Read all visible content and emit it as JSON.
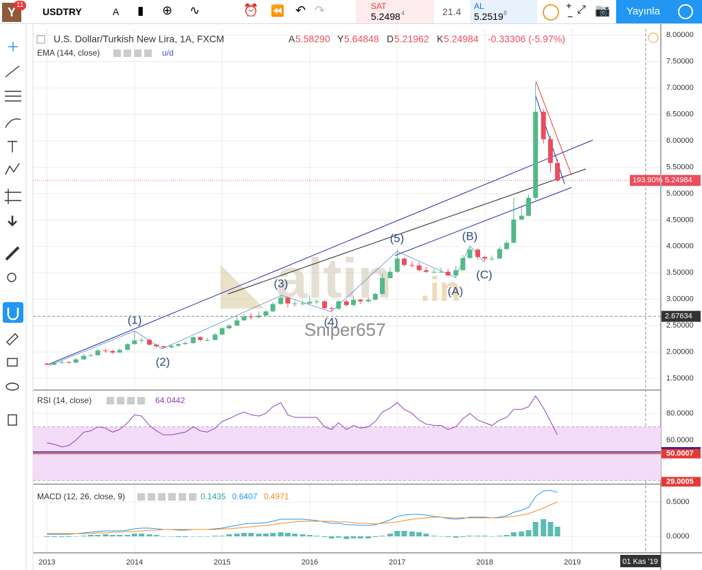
{
  "toolbar": {
    "badge": "11",
    "symbol": "USDTRY",
    "interval": "A",
    "sell_label": "SAT",
    "sell_price": "5.2498",
    "sell_digit": "4",
    "spread": "21.4",
    "buy_label": "AL",
    "buy_price": "5.2519",
    "buy_digit": "8",
    "publish": "Yayınla"
  },
  "chart_data": [
    {
      "type": "candlestick",
      "title": "U.S. Dollar/Turkish New Lira, 1A, FXCM",
      "ohlc_legend": [
        "A",
        "5.58290",
        "Y",
        "5.64848",
        "D",
        "5.21962",
        "K",
        "5.24984",
        "-0.33306 (-5.97%)"
      ],
      "indicator": "EMA (144, close)",
      "indicator_note": "u/d",
      "annotations": [
        "(1)",
        "(2)",
        "(3)",
        "(4)",
        "(5)",
        "(A)",
        "(B)",
        "(C)"
      ],
      "watermark": [
        "altin",
        ".in"
      ],
      "author": "Sniper657",
      "x": [
        2013,
        2013.08,
        2013.17,
        2013.25,
        2013.33,
        2013.42,
        2013.5,
        2013.58,
        2013.67,
        2013.75,
        2013.83,
        2013.92,
        2014,
        2014.08,
        2014.17,
        2014.25,
        2014.33,
        2014.42,
        2014.5,
        2014.58,
        2014.67,
        2014.75,
        2014.83,
        2014.92,
        2015,
        2015.08,
        2015.17,
        2015.25,
        2015.33,
        2015.42,
        2015.5,
        2015.58,
        2015.67,
        2015.75,
        2015.83,
        2015.92,
        2016,
        2016.08,
        2016.17,
        2016.25,
        2016.33,
        2016.42,
        2016.5,
        2016.58,
        2016.67,
        2016.75,
        2016.83,
        2016.92,
        2017,
        2017.08,
        2017.17,
        2017.25,
        2017.33,
        2017.42,
        2017.5,
        2017.58,
        2017.67,
        2017.75,
        2017.83,
        2017.92,
        2018,
        2018.08,
        2018.17,
        2018.25,
        2018.33,
        2018.42,
        2018.5,
        2018.58,
        2018.67,
        2018.75,
        2018.83
      ],
      "open": [
        1.78,
        1.76,
        1.8,
        1.81,
        1.8,
        1.86,
        1.93,
        1.94,
        2.03,
        2.02,
        1.99,
        2.04,
        2.15,
        2.22,
        2.23,
        2.14,
        2.11,
        2.09,
        2.12,
        2.15,
        2.17,
        2.28,
        2.23,
        2.23,
        2.33,
        2.45,
        2.5,
        2.6,
        2.67,
        2.66,
        2.69,
        2.77,
        2.91,
        3.03,
        2.92,
        2.92,
        2.92,
        2.95,
        2.96,
        2.83,
        2.82,
        2.96,
        2.89,
        2.99,
        2.96,
        2.99,
        3.1,
        3.4,
        3.52,
        3.77,
        3.65,
        3.64,
        3.55,
        3.52,
        3.52,
        3.52,
        3.45,
        3.55,
        3.78,
        3.94,
        3.8,
        3.77,
        3.77,
        3.95,
        4.07,
        4.51,
        4.58,
        4.92,
        6.55,
        6.03,
        5.58
      ],
      "high": [
        1.8,
        1.82,
        1.84,
        1.83,
        1.89,
        1.97,
        1.97,
        2.07,
        2.07,
        2.04,
        2.07,
        2.17,
        2.39,
        2.27,
        2.26,
        2.16,
        2.12,
        2.15,
        2.17,
        2.2,
        2.3,
        2.3,
        2.27,
        2.36,
        2.47,
        2.53,
        2.67,
        2.72,
        2.74,
        2.76,
        2.8,
        2.94,
        3.08,
        3.05,
        2.97,
        2.98,
        3.07,
        2.99,
        2.98,
        2.86,
        2.99,
        2.99,
        3.05,
        3.01,
        3.03,
        3.12,
        3.49,
        3.6,
        3.94,
        3.79,
        3.72,
        3.7,
        3.61,
        3.58,
        3.6,
        3.58,
        3.63,
        3.84,
        3.98,
        3.96,
        3.82,
        3.83,
        3.99,
        4.11,
        4.92,
        4.79,
        4.98,
        7.1,
        6.6,
        6.1,
        5.65
      ],
      "low": [
        1.75,
        1.75,
        1.78,
        1.78,
        1.79,
        1.85,
        1.91,
        1.93,
        1.98,
        1.96,
        1.98,
        2.03,
        2.14,
        2.17,
        2.12,
        2.08,
        2.07,
        2.07,
        2.1,
        2.14,
        2.16,
        2.2,
        2.2,
        2.22,
        2.32,
        2.43,
        2.49,
        2.59,
        2.61,
        2.63,
        2.68,
        2.76,
        2.9,
        2.84,
        2.86,
        2.88,
        2.9,
        2.91,
        2.82,
        2.77,
        2.8,
        2.86,
        2.86,
        2.91,
        2.94,
        2.98,
        3.08,
        3.39,
        3.5,
        3.62,
        3.6,
        3.53,
        3.5,
        3.49,
        3.5,
        3.44,
        3.4,
        3.54,
        3.77,
        3.75,
        3.71,
        3.73,
        3.76,
        3.94,
        4.06,
        4.5,
        4.57,
        4.88,
        5.95,
        5.4,
        5.22
      ],
      "close": [
        1.76,
        1.8,
        1.81,
        1.8,
        1.86,
        1.93,
        1.94,
        2.03,
        2.02,
        1.99,
        2.04,
        2.15,
        2.22,
        2.23,
        2.14,
        2.11,
        2.09,
        2.12,
        2.15,
        2.17,
        2.28,
        2.23,
        2.23,
        2.33,
        2.45,
        2.5,
        2.6,
        2.67,
        2.66,
        2.69,
        2.77,
        2.91,
        3.03,
        2.92,
        2.92,
        2.92,
        2.95,
        2.96,
        2.83,
        2.82,
        2.96,
        2.89,
        2.99,
        2.96,
        2.99,
        3.1,
        3.4,
        3.52,
        3.77,
        3.65,
        3.64,
        3.55,
        3.52,
        3.52,
        3.52,
        3.45,
        3.55,
        3.78,
        3.94,
        3.8,
        3.77,
        3.77,
        3.95,
        4.07,
        4.51,
        4.58,
        4.92,
        6.55,
        6.03,
        5.58,
        5.25
      ],
      "up_color": "#53b987",
      "down_color": "#eb4d5c",
      "last_price": 5.24984,
      "last_change": "193.90%",
      "crosshair_price": 2.67634,
      "crosshair_date": "01 Kas '19",
      "xlim": [
        2012.84,
        2020.01
      ],
      "xticks": [
        2013,
        2014,
        2015,
        2016,
        2017,
        2018,
        2019
      ],
      "ylim": [
        1.28,
        8.12
      ],
      "yticks": [
        {
          "value": 1.5,
          "label": "1.50000"
        },
        {
          "value": 2,
          "label": "2.00000"
        },
        {
          "value": 2.5,
          "label": "2.50000"
        },
        {
          "value": 3,
          "label": "3.00000"
        },
        {
          "value": 3.5,
          "label": "3.50000"
        },
        {
          "value": 4,
          "label": "4.00000"
        },
        {
          "value": 4.5,
          "label": "4.50000"
        },
        {
          "value": 5,
          "label": "5.00000"
        },
        {
          "value": 5.5,
          "label": "5.50000"
        },
        {
          "value": 6,
          "label": "6.00000"
        },
        {
          "value": 6.5,
          "label": "6.50000"
        },
        {
          "value": 7,
          "label": "7.00000"
        },
        {
          "value": 7.5,
          "label": "7.50000"
        },
        {
          "value": 8,
          "label": "8.00000"
        }
      ],
      "grid": true
    },
    {
      "type": "line",
      "title": "RSI (14, close)",
      "current_value": 64.0442,
      "color": "#8e3fb5",
      "values": [
        58,
        57,
        55,
        56,
        60,
        66,
        67,
        70,
        69,
        66,
        68,
        73,
        79,
        78,
        71,
        67,
        64,
        64,
        65,
        66,
        70,
        67,
        66,
        69,
        74,
        76,
        79,
        81,
        79,
        78,
        80,
        85,
        88,
        79,
        77,
        77,
        77,
        77,
        70,
        68,
        73,
        68,
        71,
        69,
        70,
        74,
        81,
        84,
        88,
        83,
        80,
        75,
        72,
        71,
        71,
        68,
        70,
        76,
        80,
        75,
        73,
        71,
        75,
        77,
        83,
        83,
        85,
        93,
        84,
        74,
        64
      ],
      "band": [
        30,
        70
      ],
      "band_color": "#f3dcf7",
      "levels": [
        51.2273,
        50.0007,
        29.0005
      ],
      "level_colors": [
        "#1a1a9e",
        "#e53935",
        "#e53935"
      ],
      "ylim": [
        27.2,
        97.4
      ],
      "yticks": [
        {
          "value": 60,
          "label": "60.0000"
        },
        {
          "value": 80,
          "label": "80.0000"
        }
      ],
      "grid": true
    },
    {
      "type": "macd",
      "title": "MACD (12, 26, close, 9)",
      "legend_values": [
        0.1435,
        0.6407,
        0.4971
      ],
      "histogram": [
        -0.01,
        -0.01,
        -0.01,
        -0.01,
        0,
        0.01,
        0.02,
        0.02,
        0.03,
        0.02,
        0.02,
        0.02,
        0.04,
        0.04,
        0.03,
        0.02,
        0,
        0,
        -0.01,
        -0.01,
        0,
        0,
        0,
        0.01,
        0.01,
        0.03,
        0.04,
        0.05,
        0.05,
        0.04,
        0.04,
        0.05,
        0.06,
        0.05,
        0.04,
        0.03,
        0.02,
        0.01,
        -0.01,
        -0.03,
        -0.02,
        -0.04,
        -0.03,
        -0.03,
        -0.03,
        -0.01,
        0.01,
        0.04,
        0.08,
        0.08,
        0.07,
        0.06,
        0.04,
        0.01,
        0,
        -0.01,
        -0.02,
        -0.01,
        0.01,
        0.01,
        0.01,
        0,
        0.01,
        0.02,
        0.06,
        0.07,
        0.09,
        0.21,
        0.25,
        0.21,
        0.14
      ],
      "macd": [
        0.03,
        0.03,
        0.03,
        0.03,
        0.04,
        0.05,
        0.06,
        0.07,
        0.08,
        0.08,
        0.08,
        0.09,
        0.11,
        0.12,
        0.12,
        0.11,
        0.1,
        0.1,
        0.09,
        0.09,
        0.1,
        0.1,
        0.1,
        0.11,
        0.12,
        0.14,
        0.16,
        0.18,
        0.19,
        0.19,
        0.2,
        0.22,
        0.25,
        0.25,
        0.25,
        0.25,
        0.24,
        0.23,
        0.21,
        0.19,
        0.19,
        0.17,
        0.17,
        0.16,
        0.16,
        0.17,
        0.2,
        0.24,
        0.29,
        0.31,
        0.32,
        0.32,
        0.31,
        0.29,
        0.28,
        0.26,
        0.25,
        0.26,
        0.28,
        0.28,
        0.28,
        0.27,
        0.28,
        0.3,
        0.35,
        0.38,
        0.42,
        0.58,
        0.66,
        0.67,
        0.64
      ],
      "signal": [
        0.04,
        0.04,
        0.04,
        0.04,
        0.04,
        0.04,
        0.04,
        0.05,
        0.05,
        0.06,
        0.06,
        0.07,
        0.07,
        0.08,
        0.09,
        0.09,
        0.1,
        0.1,
        0.1,
        0.1,
        0.1,
        0.1,
        0.1,
        0.1,
        0.11,
        0.11,
        0.12,
        0.13,
        0.14,
        0.15,
        0.16,
        0.17,
        0.19,
        0.2,
        0.21,
        0.22,
        0.22,
        0.22,
        0.22,
        0.22,
        0.21,
        0.21,
        0.2,
        0.19,
        0.19,
        0.18,
        0.19,
        0.2,
        0.21,
        0.23,
        0.25,
        0.26,
        0.27,
        0.28,
        0.28,
        0.27,
        0.27,
        0.27,
        0.27,
        0.27,
        0.27,
        0.27,
        0.27,
        0.28,
        0.29,
        0.31,
        0.33,
        0.37,
        0.41,
        0.46,
        0.5
      ],
      "colors": [
        "#26a69a",
        "#2196f3",
        "#ef8a1f"
      ],
      "ylim": [
        -0.24,
        0.76
      ],
      "yticks": [
        {
          "value": 0,
          "label": "0.0000"
        },
        {
          "value": 0.5,
          "label": "0.5000"
        }
      ],
      "grid": true
    }
  ]
}
